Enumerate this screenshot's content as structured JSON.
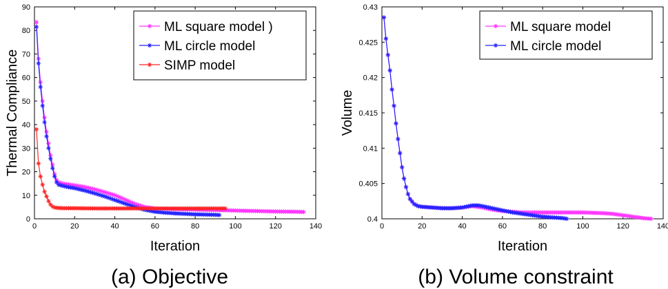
{
  "chart_data": [
    {
      "type": "line",
      "xlabel": "Iteration",
      "ylabel": "Thermal Compliance",
      "caption": "(a) Objective",
      "xlim": [
        0,
        140
      ],
      "ylim": [
        0,
        90
      ],
      "xticks": [
        "0",
        "20",
        "40",
        "60",
        "80",
        "100",
        "120",
        "140"
      ],
      "yticks": [
        "0",
        "10",
        "20",
        "30",
        "40",
        "50",
        "60",
        "70",
        "80",
        "90"
      ],
      "grid": false,
      "legend_position": "top-right",
      "legend": [
        "ML square model )",
        "ML circle model",
        "SIMP model"
      ],
      "series": [
        {
          "name": "ML square model )",
          "color": "#ff33ff",
          "marker": "asterisk",
          "points": [
            [
              1,
              83.5
            ],
            [
              2,
              68
            ],
            [
              3,
              58
            ],
            [
              4,
              50
            ],
            [
              5,
              43
            ],
            [
              6,
              37
            ],
            [
              7,
              32
            ],
            [
              8,
              27
            ],
            [
              9,
              23
            ],
            [
              10,
              19
            ],
            [
              11,
              16.5
            ],
            [
              12,
              15.5
            ],
            [
              14,
              15
            ],
            [
              16,
              14.7
            ],
            [
              20,
              14.2
            ],
            [
              25,
              13.5
            ],
            [
              30,
              12.5
            ],
            [
              35,
              11.3
            ],
            [
              40,
              10
            ],
            [
              45,
              8.2
            ],
            [
              50,
              6.3
            ],
            [
              55,
              5.0
            ],
            [
              60,
              4.4
            ],
            [
              70,
              4.1
            ],
            [
              80,
              3.9
            ],
            [
              90,
              3.7
            ],
            [
              100,
              3.5
            ],
            [
              110,
              3.3
            ],
            [
              120,
              3.1
            ],
            [
              130,
              3.0
            ],
            [
              134,
              2.9
            ]
          ]
        },
        {
          "name": "ML circle model",
          "color": "#2222ff",
          "marker": "asterisk",
          "points": [
            [
              1,
              81.5
            ],
            [
              2,
              66
            ],
            [
              3,
              56
            ],
            [
              4,
              48
            ],
            [
              5,
              41
            ],
            [
              6,
              35
            ],
            [
              7,
              30
            ],
            [
              8,
              25.5
            ],
            [
              9,
              21.5
            ],
            [
              10,
              18
            ],
            [
              11,
              15.5
            ],
            [
              12,
              14.5
            ],
            [
              14,
              14
            ],
            [
              16,
              13.6
            ],
            [
              20,
              13
            ],
            [
              25,
              12
            ],
            [
              30,
              10.8
            ],
            [
              35,
              9.5
            ],
            [
              40,
              8
            ],
            [
              45,
              6.5
            ],
            [
              50,
              5.0
            ],
            [
              55,
              3.8
            ],
            [
              60,
              3.0
            ],
            [
              65,
              2.6
            ],
            [
              70,
              2.3
            ],
            [
              75,
              2.1
            ],
            [
              80,
              1.9
            ],
            [
              85,
              1.8
            ],
            [
              90,
              1.7
            ],
            [
              92,
              1.6
            ]
          ]
        },
        {
          "name": "SIMP model",
          "color": "#ff2222",
          "marker": "asterisk",
          "points": [
            [
              1,
              38
            ],
            [
              2,
              23.5
            ],
            [
              3,
              18
            ],
            [
              4,
              14.5
            ],
            [
              5,
              11.5
            ],
            [
              6,
              9.5
            ],
            [
              7,
              7.5
            ],
            [
              8,
              6
            ],
            [
              9,
              5.2
            ],
            [
              10,
              4.8
            ],
            [
              12,
              4.6
            ],
            [
              15,
              4.5
            ],
            [
              20,
              4.5
            ],
            [
              30,
              4.4
            ],
            [
              40,
              4.4
            ],
            [
              50,
              4.4
            ],
            [
              60,
              4.4
            ],
            [
              70,
              4.4
            ],
            [
              80,
              4.4
            ],
            [
              90,
              4.4
            ],
            [
              95,
              4.4
            ]
          ]
        }
      ]
    },
    {
      "type": "line",
      "xlabel": "Iteration",
      "ylabel": "Volume",
      "caption": "(b) Volume constraint",
      "xlim": [
        0,
        140
      ],
      "ylim": [
        0.4,
        0.43
      ],
      "xticks": [
        "0",
        "20",
        "40",
        "60",
        "80",
        "100",
        "120",
        "140"
      ],
      "yticks": [
        "0.4",
        "0.405",
        "0.41",
        "0.415",
        "0.42",
        "0.425",
        "0.43"
      ],
      "grid": false,
      "legend_position": "top-right",
      "legend": [
        "ML square model",
        "ML circle model"
      ],
      "series": [
        {
          "name": "ML square model",
          "color": "#ff33ff",
          "marker": "asterisk",
          "points": [
            [
              1,
              0.4285
            ],
            [
              2,
              0.4255
            ],
            [
              3,
              0.4232
            ],
            [
              4,
              0.421
            ],
            [
              5,
              0.4183
            ],
            [
              6,
              0.416
            ],
            [
              7,
              0.4135
            ],
            [
              8,
              0.4113
            ],
            [
              9,
              0.4093
            ],
            [
              10,
              0.4073
            ],
            [
              11,
              0.4057
            ],
            [
              12,
              0.4045
            ],
            [
              13,
              0.4035
            ],
            [
              14,
              0.4028
            ],
            [
              16,
              0.4021
            ],
            [
              18,
              0.4018
            ],
            [
              20,
              0.4017
            ],
            [
              25,
              0.4016
            ],
            [
              30,
              0.4015
            ],
            [
              35,
              0.4015
            ],
            [
              40,
              0.4016
            ],
            [
              45,
              0.4018
            ],
            [
              50,
              0.4016
            ],
            [
              55,
              0.4013
            ],
            [
              60,
              0.4011
            ],
            [
              70,
              0.4009
            ],
            [
              80,
              0.4009
            ],
            [
              90,
              0.4009
            ],
            [
              100,
              0.4009
            ],
            [
              110,
              0.4008
            ],
            [
              115,
              0.4007
            ],
            [
              120,
              0.4005
            ],
            [
              125,
              0.4003
            ],
            [
              130,
              0.4001
            ],
            [
              134,
              0.4
            ]
          ]
        },
        {
          "name": "ML circle model",
          "color": "#2222ff",
          "marker": "asterisk",
          "points": [
            [
              1,
              0.4285
            ],
            [
              2,
              0.4255
            ],
            [
              3,
              0.4232
            ],
            [
              4,
              0.421
            ],
            [
              5,
              0.4183
            ],
            [
              6,
              0.416
            ],
            [
              7,
              0.4135
            ],
            [
              8,
              0.4113
            ],
            [
              9,
              0.4093
            ],
            [
              10,
              0.4073
            ],
            [
              11,
              0.4057
            ],
            [
              12,
              0.4045
            ],
            [
              13,
              0.4035
            ],
            [
              14,
              0.4028
            ],
            [
              16,
              0.4021
            ],
            [
              18,
              0.4018
            ],
            [
              20,
              0.4017
            ],
            [
              25,
              0.4016
            ],
            [
              30,
              0.4015
            ],
            [
              35,
              0.4015
            ],
            [
              40,
              0.4016
            ],
            [
              45,
              0.4019
            ],
            [
              48,
              0.4019
            ],
            [
              50,
              0.4018
            ],
            [
              55,
              0.4015
            ],
            [
              60,
              0.4012
            ],
            [
              65,
              0.4009
            ],
            [
              70,
              0.4007
            ],
            [
              75,
              0.4005
            ],
            [
              80,
              0.4003
            ],
            [
              85,
              0.4002
            ],
            [
              90,
              0.4001
            ],
            [
              92,
              0.4
            ]
          ]
        }
      ]
    }
  ]
}
